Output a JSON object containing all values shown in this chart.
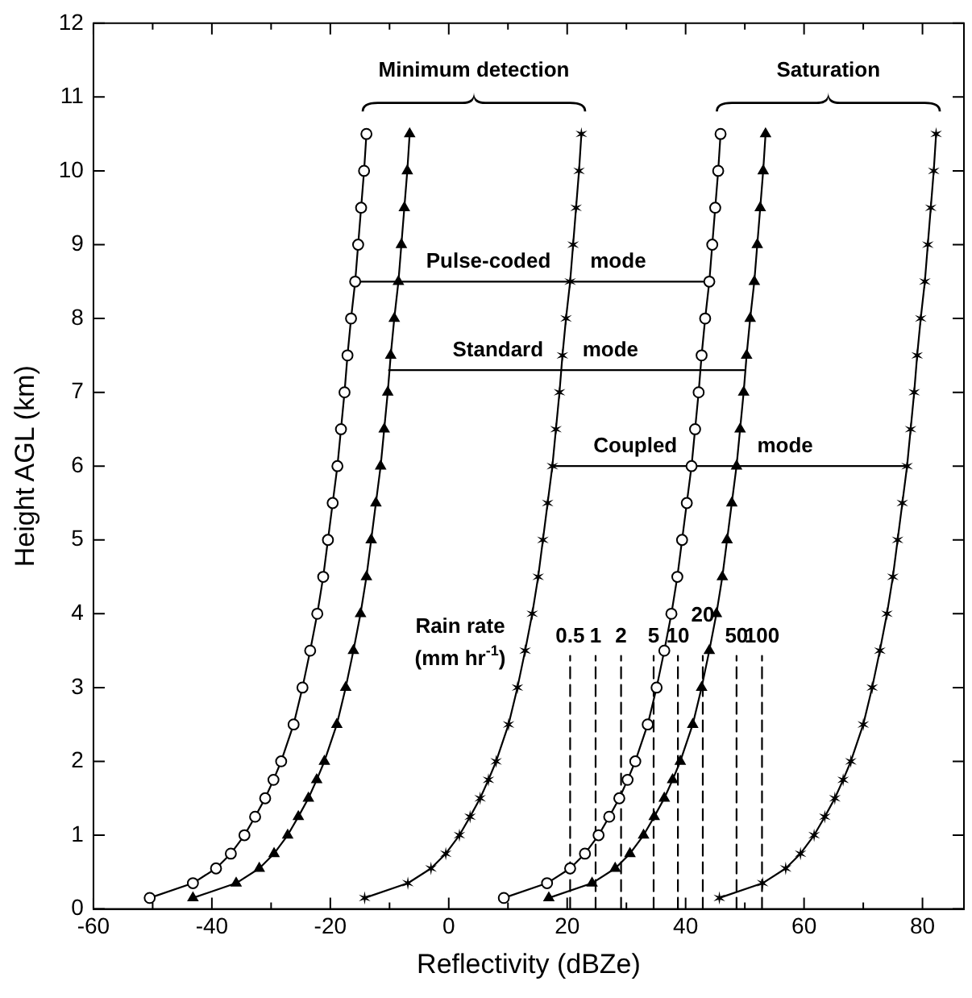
{
  "chart_data": {
    "type": "line",
    "xlabel": "Reflectivity (dBZe)",
    "ylabel": "Height AGL (km)",
    "xlim": [
      -60,
      87
    ],
    "xticks": [
      -60,
      {
        "value": -50,
        "label": null
      },
      -40,
      {
        "value": -30,
        "label": null
      },
      -20,
      {
        "value": -10,
        "label": null
      },
      0,
      {
        "value": 10,
        "label": null
      },
      20,
      {
        "value": 30,
        "label": null
      },
      40,
      {
        "value": 50,
        "label": null
      },
      60,
      {
        "value": 70,
        "label": null
      },
      80
    ],
    "ylim": [
      0,
      12
    ],
    "yticks": [
      0,
      1,
      2,
      3,
      4,
      5,
      6,
      7,
      8,
      9,
      10,
      11,
      12
    ],
    "grid": false,
    "legend": false,
    "annotations": [
      "Minimum detection",
      "Saturation",
      {
        "text": "Pulse-coded",
        "x": 6.7,
        "y": 8.5
      },
      {
        "text": "mode",
        "x": 28.6,
        "y": 8.5
      },
      {
        "text": "Standard",
        "x": 8.3,
        "y": 7.3
      },
      {
        "text": "mode",
        "x": 27.3,
        "y": 7.3
      },
      {
        "text": "Coupled",
        "x": 31.5,
        "y": 6.0
      },
      {
        "text": "mode",
        "x": 56.8,
        "y": 6.0
      },
      "Rain rate",
      "(mm hr$^{-1}$)",
      {
        "text": "0.5",
        "x": 20.5,
        "y": 3.43
      },
      {
        "text": "1",
        "x": 24.8,
        "y": 3.43
      },
      {
        "text": "2",
        "x": 29.1,
        "y": 3.43
      },
      {
        "text": "5",
        "x": 34.6,
        "y": 3.43
      },
      {
        "text": "10",
        "x": 38.7,
        "y": 3.43
      },
      {
        "text": "20",
        "x": 42.9,
        "y": 3.43
      },
      {
        "text": "50",
        "x": 48.6,
        "y": 3.43
      },
      {
        "text": "100",
        "x": 52.9,
        "y": 3.43
      }
    ],
    "series": [
      {
        "color": "#000000",
        "marker": "circle",
        "x": [
          -50.5,
          -43.2,
          -39.3,
          -36.8,
          -34.5,
          -32.7,
          -31.0,
          -29.6,
          -28.3,
          -26.2,
          -24.7,
          -23.4,
          -22.2,
          -21.2,
          -20.4,
          -19.6,
          -18.8,
          -18.2,
          -17.6,
          -17.1,
          -16.5,
          -15.8,
          -15.3,
          -14.8,
          -14.3,
          -13.9
        ],
        "values": [
          0.15,
          0.35,
          0.55,
          0.75,
          1.0,
          1.25,
          1.5,
          1.75,
          2.0,
          2.5,
          3.0,
          3.5,
          4.0,
          4.5,
          5.0,
          5.5,
          6.0,
          6.5,
          7.0,
          7.5,
          8.0,
          8.5,
          9.0,
          9.5,
          10.0,
          10.5
        ]
      },
      {
        "color": "#000000",
        "marker": "triangle",
        "x": [
          -43.2,
          -35.9,
          -32.0,
          -29.5,
          -27.2,
          -25.4,
          -23.7,
          -22.3,
          -21.0,
          -18.9,
          -17.4,
          -16.1,
          -14.9,
          -13.9,
          -13.1,
          -12.3,
          -11.5,
          -10.9,
          -10.3,
          -9.8,
          -9.2,
          -8.5,
          -8.0,
          -7.5,
          -7.0,
          -6.6
        ],
        "values": [
          0.15,
          0.35,
          0.55,
          0.75,
          1.0,
          1.25,
          1.5,
          1.75,
          2.0,
          2.5,
          3.0,
          3.5,
          4.0,
          4.5,
          5.0,
          5.5,
          6.0,
          6.5,
          7.0,
          7.5,
          8.0,
          8.5,
          9.0,
          9.5,
          10.0,
          10.5
        ]
      },
      {
        "color": "#000000",
        "marker": "cross",
        "x": [
          -14.2,
          -6.9,
          -3.0,
          -0.5,
          1.8,
          3.6,
          5.3,
          6.7,
          8.0,
          10.1,
          11.6,
          12.9,
          14.1,
          15.1,
          15.9,
          16.7,
          17.5,
          18.1,
          18.7,
          19.2,
          19.8,
          20.5,
          21.0,
          21.5,
          22.0,
          22.4
        ],
        "values": [
          0.15,
          0.35,
          0.55,
          0.75,
          1.0,
          1.25,
          1.5,
          1.75,
          2.0,
          2.5,
          3.0,
          3.5,
          4.0,
          4.5,
          5.0,
          5.5,
          6.0,
          6.5,
          7.0,
          7.5,
          8.0,
          8.5,
          9.0,
          9.5,
          10.0,
          10.5
        ]
      },
      {
        "color": "#000000",
        "marker": "circle",
        "x": [
          9.3,
          16.6,
          20.5,
          23.0,
          25.3,
          27.1,
          28.8,
          30.2,
          31.5,
          33.6,
          35.1,
          36.4,
          37.6,
          38.6,
          39.4,
          40.2,
          41.0,
          41.6,
          42.2,
          42.7,
          43.3,
          44.0,
          44.5,
          45.0,
          45.5,
          45.9
        ],
        "values": [
          0.15,
          0.35,
          0.55,
          0.75,
          1.0,
          1.25,
          1.5,
          1.75,
          2.0,
          2.5,
          3.0,
          3.5,
          4.0,
          4.5,
          5.0,
          5.5,
          6.0,
          6.5,
          7.0,
          7.5,
          8.0,
          8.5,
          9.0,
          9.5,
          10.0,
          10.5
        ]
      },
      {
        "color": "#000000",
        "marker": "triangle",
        "x": [
          16.9,
          24.2,
          28.1,
          30.6,
          32.9,
          34.7,
          36.4,
          37.8,
          39.1,
          41.2,
          42.7,
          44.0,
          45.2,
          46.2,
          47.0,
          47.8,
          48.6,
          49.2,
          49.8,
          50.3,
          50.9,
          51.6,
          52.1,
          52.6,
          53.1,
          53.5
        ],
        "values": [
          0.15,
          0.35,
          0.55,
          0.75,
          1.0,
          1.25,
          1.5,
          1.75,
          2.0,
          2.5,
          3.0,
          3.5,
          4.0,
          4.5,
          5.0,
          5.5,
          6.0,
          6.5,
          7.0,
          7.5,
          8.0,
          8.5,
          9.0,
          9.5,
          10.0,
          10.5
        ]
      },
      {
        "color": "#000000",
        "marker": "cross",
        "x": [
          45.7,
          53.0,
          56.9,
          59.4,
          61.7,
          63.5,
          65.2,
          66.6,
          67.9,
          70.0,
          71.5,
          72.8,
          74.0,
          75.0,
          75.8,
          76.6,
          77.4,
          78.0,
          78.6,
          79.1,
          79.7,
          80.4,
          80.9,
          81.4,
          81.9,
          82.3
        ],
        "values": [
          0.15,
          0.35,
          0.55,
          0.75,
          1.0,
          1.25,
          1.5,
          1.75,
          2.0,
          2.5,
          3.0,
          3.5,
          4.0,
          4.5,
          5.0,
          5.5,
          6.0,
          6.5,
          7.0,
          7.5,
          8.0,
          8.5,
          9.0,
          9.5,
          10.0,
          10.5
        ]
      },
      {
        "color": "#000000",
        "marker": "none",
        "x": [
          -15.8,
          44.0
        ],
        "values": [
          8.5,
          8.5
        ]
      },
      {
        "color": "#000000",
        "marker": "none",
        "x": [
          -10.1,
          49.9
        ],
        "values": [
          7.3,
          7.3
        ]
      },
      {
        "color": "#000000",
        "marker": "none",
        "x": [
          17.5,
          77.4
        ],
        "values": [
          6.0,
          6.0
        ]
      },
      {
        "color": "#000000",
        "marker": "none",
        "line_style": "dashed",
        "x": [
          20.5,
          20.5
        ],
        "values": [
          0,
          3.43
        ]
      },
      {
        "color": "#000000",
        "marker": "none",
        "line_style": "dashed",
        "x": [
          24.8,
          24.8
        ],
        "values": [
          0,
          3.43
        ]
      },
      {
        "color": "#000000",
        "marker": "none",
        "line_style": "dashed",
        "x": [
          29.1,
          29.1
        ],
        "values": [
          0,
          3.43
        ]
      },
      {
        "color": "#000000",
        "marker": "none",
        "line_style": "dashed",
        "x": [
          34.6,
          34.6
        ],
        "values": [
          0,
          3.43
        ]
      },
      {
        "color": "#000000",
        "marker": "none",
        "line_style": "dashed",
        "x": [
          38.7,
          38.7
        ],
        "values": [
          0,
          3.43
        ]
      },
      {
        "color": "#000000",
        "marker": "none",
        "line_style": "dashed",
        "x": [
          42.9,
          42.9
        ],
        "values": [
          0,
          3.43
        ]
      },
      {
        "color": "#000000",
        "marker": "none",
        "line_style": "dashed",
        "x": [
          48.6,
          48.6
        ],
        "values": [
          0,
          3.43
        ]
      },
      {
        "color": "#000000",
        "marker": "none",
        "line_style": "dashed",
        "x": [
          52.9,
          52.9
        ],
        "values": [
          0,
          3.43
        ]
      }
    ]
  }
}
